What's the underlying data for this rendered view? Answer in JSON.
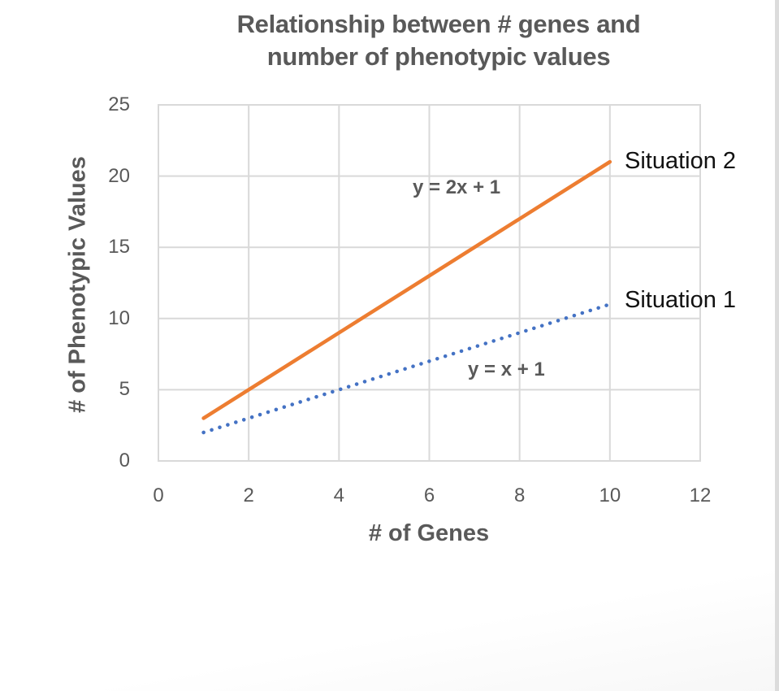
{
  "chart_data": {
    "type": "line",
    "title": "Relationship between # genes and number of phenotypic values",
    "title_lines": [
      "Relationship between # genes and",
      "number of phenotypic values"
    ],
    "xlabel": "# of Genes",
    "ylabel": "# of Phenotypic Values",
    "xlim": [
      0,
      12
    ],
    "ylim": [
      0,
      25
    ],
    "x_ticks": [
      "0",
      "2",
      "4",
      "6",
      "8",
      "10",
      "12"
    ],
    "y_ticks": [
      "0",
      "5",
      "10",
      "15",
      "20",
      "25"
    ],
    "grid": true,
    "legend_position": "none (direct labels at line ends)",
    "x": [
      1,
      10
    ],
    "series": [
      {
        "name": "Situation 1",
        "equation": "y = x + 1",
        "values": [
          2,
          11
        ],
        "color": "#4472C4",
        "style": "dotted"
      },
      {
        "name": "Situation 2",
        "equation": "y = 2x + 1",
        "values": [
          3,
          21
        ],
        "color": "#ED7D31",
        "style": "solid"
      }
    ]
  },
  "colors": {
    "text": "#595959",
    "grid": "#d9d9d9",
    "situation1": "#4472C4",
    "situation2": "#ED7D31"
  }
}
